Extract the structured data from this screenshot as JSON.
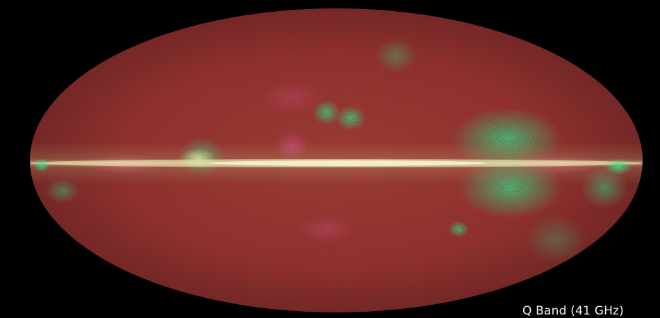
{
  "caption": "Q Band (41 GHz)",
  "colors": {
    "background": "#000000",
    "sky_base": "#a0302f",
    "sky_dark": "#5e1c1a",
    "plane_core": "#f3f5c0",
    "plane_glow": "#c9d98a",
    "magenta_emission": "#d8437a",
    "green_emission": "#2fd67c",
    "caption_text": "#f2f2f2"
  }
}
